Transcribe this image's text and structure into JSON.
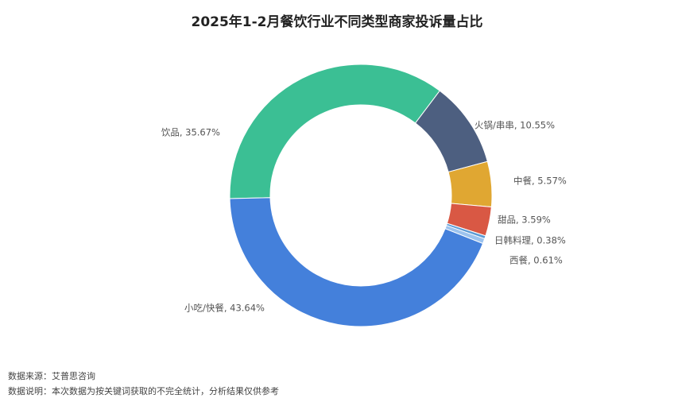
{
  "chart_data": {
    "type": "donut",
    "title": "2025年1-2月餐饮行业不同类型商家投诉量占比",
    "categories": [
      "饮品",
      "火锅/串串",
      "中餐",
      "甜品",
      "日韩料理",
      "西餐",
      "小吃/快餐"
    ],
    "values": [
      35.67,
      10.55,
      5.57,
      3.59,
      0.38,
      0.61,
      43.64
    ],
    "labels": [
      "饮品, 35.67%",
      "火锅/串串, 10.55%",
      "中餐, 5.57%",
      "甜品, 3.59%",
      "日韩料理, 0.38%",
      "西餐, 0.61%",
      "小吃/快餐, 43.64%"
    ],
    "colors": [
      "#3bbf94",
      "#4d5f80",
      "#e0a732",
      "#d95844",
      "#5b9bd5",
      "#9cc3ee",
      "#4480db"
    ],
    "footnotes": [
      "数据来源：艾普思咨询",
      "数据说明：本次数据为按关键词获取的不完全统计，分析结果仅供参考"
    ]
  }
}
